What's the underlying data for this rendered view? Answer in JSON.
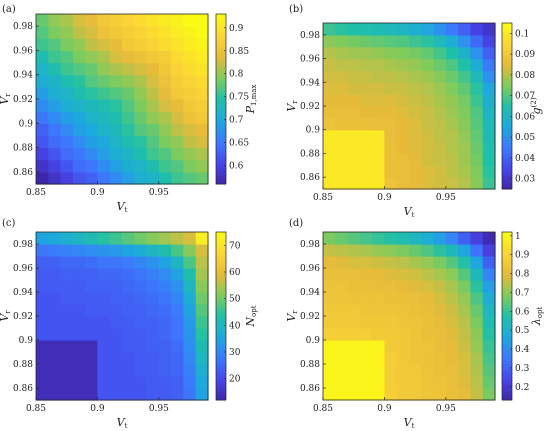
{
  "figure": {
    "colormap": [
      "#3e26a8",
      "#4746eb",
      "#3c7afd",
      "#1ea8df",
      "#1fc0a8",
      "#7fcb5c",
      "#e6bb3a",
      "#fcd636",
      "#f9fb14"
    ]
  },
  "chart_data": [
    {
      "panel": "(a)",
      "type": "heatmap",
      "xlabel": "V_t",
      "ylabel": "V_r",
      "colorbar_label": "P_1,max",
      "xlim": [
        0.85,
        0.99
      ],
      "ylim": [
        0.85,
        0.99
      ],
      "x_ticks": [
        "0.85",
        "0.9",
        "0.95"
      ],
      "y_ticks": [
        "0.86",
        "0.88",
        "0.9",
        "0.92",
        "0.94",
        "0.96",
        "0.98"
      ],
      "x_tick_values": [
        0.85,
        0.9,
        0.95
      ],
      "y_tick_values": [
        0.86,
        0.88,
        0.9,
        0.92,
        0.94,
        0.96,
        0.98
      ],
      "colorbar_ticks": [
        "0.6",
        "0.65",
        "0.7",
        "0.75",
        "0.8",
        "0.85",
        "0.9"
      ],
      "colorbar_tick_values": [
        0.6,
        0.65,
        0.7,
        0.75,
        0.8,
        0.85,
        0.9
      ],
      "colorbar_range": [
        0.56,
        0.93
      ],
      "grid": [
        [
          0.56,
          0.58,
          0.6,
          0.62,
          0.63,
          0.65,
          0.67,
          0.69,
          0.71,
          0.72,
          0.74,
          0.76,
          0.77,
          0.78
        ],
        [
          0.58,
          0.6,
          0.62,
          0.64,
          0.65,
          0.67,
          0.69,
          0.71,
          0.72,
          0.74,
          0.76,
          0.77,
          0.79,
          0.8
        ],
        [
          0.6,
          0.62,
          0.64,
          0.65,
          0.67,
          0.69,
          0.71,
          0.72,
          0.74,
          0.76,
          0.77,
          0.79,
          0.8,
          0.81
        ],
        [
          0.62,
          0.64,
          0.65,
          0.67,
          0.69,
          0.7,
          0.72,
          0.74,
          0.75,
          0.77,
          0.79,
          0.8,
          0.82,
          0.83
        ],
        [
          0.63,
          0.65,
          0.67,
          0.69,
          0.7,
          0.72,
          0.73,
          0.75,
          0.77,
          0.78,
          0.8,
          0.82,
          0.83,
          0.84
        ],
        [
          0.65,
          0.67,
          0.69,
          0.7,
          0.72,
          0.73,
          0.74,
          0.76,
          0.78,
          0.8,
          0.81,
          0.83,
          0.85,
          0.86
        ],
        [
          0.67,
          0.69,
          0.71,
          0.72,
          0.73,
          0.74,
          0.75,
          0.77,
          0.79,
          0.81,
          0.83,
          0.84,
          0.86,
          0.87
        ],
        [
          0.69,
          0.71,
          0.72,
          0.74,
          0.75,
          0.76,
          0.77,
          0.78,
          0.8,
          0.82,
          0.84,
          0.86,
          0.87,
          0.88
        ],
        [
          0.71,
          0.72,
          0.74,
          0.75,
          0.77,
          0.78,
          0.79,
          0.8,
          0.81,
          0.83,
          0.85,
          0.87,
          0.88,
          0.89
        ],
        [
          0.72,
          0.74,
          0.76,
          0.77,
          0.78,
          0.8,
          0.81,
          0.82,
          0.83,
          0.84,
          0.86,
          0.88,
          0.89,
          0.9
        ],
        [
          0.74,
          0.76,
          0.77,
          0.79,
          0.8,
          0.81,
          0.83,
          0.84,
          0.85,
          0.86,
          0.87,
          0.89,
          0.9,
          0.91
        ],
        [
          0.76,
          0.77,
          0.79,
          0.8,
          0.82,
          0.83,
          0.84,
          0.86,
          0.87,
          0.88,
          0.89,
          0.9,
          0.91,
          0.92
        ],
        [
          0.77,
          0.79,
          0.8,
          0.82,
          0.83,
          0.85,
          0.86,
          0.87,
          0.88,
          0.89,
          0.9,
          0.91,
          0.92,
          0.93
        ],
        [
          0.78,
          0.8,
          0.81,
          0.83,
          0.84,
          0.86,
          0.87,
          0.88,
          0.89,
          0.9,
          0.91,
          0.92,
          0.93,
          0.93
        ]
      ]
    },
    {
      "panel": "(b)",
      "type": "heatmap",
      "xlabel": "V_t",
      "ylabel": "V_r",
      "colorbar_label": "g^(2)",
      "xlim": [
        0.85,
        0.99
      ],
      "ylim": [
        0.85,
        0.99
      ],
      "x_ticks": [
        "0.85",
        "0.9",
        "0.95"
      ],
      "y_ticks": [
        "0.86",
        "0.88",
        "0.9",
        "0.92",
        "0.94",
        "0.96",
        "0.98"
      ],
      "x_tick_values": [
        0.85,
        0.9,
        0.95
      ],
      "y_tick_values": [
        0.86,
        0.88,
        0.9,
        0.92,
        0.94,
        0.96,
        0.98
      ],
      "colorbar_ticks": [
        "0.03",
        "0.04",
        "0.05",
        "0.06",
        "0.07",
        "0.08",
        "0.09",
        "0.1"
      ],
      "colorbar_tick_values": [
        0.03,
        0.04,
        0.05,
        0.06,
        0.07,
        0.08,
        0.09,
        0.1
      ],
      "colorbar_range": [
        0.025,
        0.105
      ],
      "grid": [
        [
          0.1,
          0.1,
          0.1,
          0.1,
          0.1,
          0.088,
          0.086,
          0.085,
          0.084,
          0.083,
          0.082,
          0.08,
          0.076,
          0.068
        ],
        [
          0.1,
          0.1,
          0.1,
          0.1,
          0.1,
          0.087,
          0.086,
          0.085,
          0.084,
          0.083,
          0.081,
          0.079,
          0.075,
          0.066
        ],
        [
          0.1,
          0.1,
          0.1,
          0.1,
          0.1,
          0.087,
          0.086,
          0.085,
          0.083,
          0.082,
          0.081,
          0.078,
          0.074,
          0.065
        ],
        [
          0.1,
          0.1,
          0.1,
          0.1,
          0.1,
          0.087,
          0.085,
          0.084,
          0.083,
          0.082,
          0.08,
          0.078,
          0.073,
          0.064
        ],
        [
          0.1,
          0.1,
          0.1,
          0.1,
          0.1,
          0.086,
          0.085,
          0.084,
          0.083,
          0.081,
          0.08,
          0.077,
          0.072,
          0.063
        ],
        [
          0.088,
          0.087,
          0.087,
          0.087,
          0.086,
          0.086,
          0.085,
          0.084,
          0.082,
          0.081,
          0.079,
          0.076,
          0.071,
          0.062
        ],
        [
          0.086,
          0.086,
          0.086,
          0.085,
          0.085,
          0.085,
          0.084,
          0.083,
          0.082,
          0.08,
          0.078,
          0.075,
          0.07,
          0.06
        ],
        [
          0.085,
          0.085,
          0.085,
          0.084,
          0.084,
          0.084,
          0.083,
          0.082,
          0.081,
          0.079,
          0.077,
          0.074,
          0.068,
          0.058
        ],
        [
          0.084,
          0.084,
          0.083,
          0.083,
          0.083,
          0.082,
          0.082,
          0.081,
          0.08,
          0.078,
          0.075,
          0.072,
          0.066,
          0.055
        ],
        [
          0.083,
          0.083,
          0.082,
          0.082,
          0.081,
          0.081,
          0.08,
          0.079,
          0.078,
          0.076,
          0.073,
          0.069,
          0.062,
          0.05
        ],
        [
          0.082,
          0.081,
          0.081,
          0.08,
          0.08,
          0.079,
          0.078,
          0.077,
          0.075,
          0.073,
          0.07,
          0.065,
          0.057,
          0.045
        ],
        [
          0.08,
          0.079,
          0.078,
          0.078,
          0.077,
          0.076,
          0.075,
          0.074,
          0.072,
          0.069,
          0.065,
          0.059,
          0.05,
          0.04
        ],
        [
          0.076,
          0.075,
          0.074,
          0.073,
          0.072,
          0.071,
          0.07,
          0.068,
          0.066,
          0.062,
          0.057,
          0.05,
          0.042,
          0.034
        ],
        [
          0.068,
          0.066,
          0.065,
          0.064,
          0.063,
          0.062,
          0.06,
          0.058,
          0.055,
          0.05,
          0.045,
          0.04,
          0.034,
          0.03
        ]
      ]
    },
    {
      "panel": "(c)",
      "type": "heatmap",
      "xlabel": "V_t",
      "ylabel": "V_r",
      "colorbar_label": "N_opt",
      "xlim": [
        0.85,
        0.99
      ],
      "ylim": [
        0.85,
        0.99
      ],
      "x_ticks": [
        "0.85",
        "0.9",
        "0.95"
      ],
      "y_ticks": [
        "0.86",
        "0.88",
        "0.9",
        "0.92",
        "0.94",
        "0.96",
        "0.98"
      ],
      "x_tick_values": [
        0.85,
        0.9,
        0.95
      ],
      "y_tick_values": [
        0.86,
        0.88,
        0.9,
        0.92,
        0.94,
        0.96,
        0.98
      ],
      "colorbar_ticks": [
        "20",
        "30",
        "40",
        "50",
        "60",
        "70"
      ],
      "colorbar_tick_values": [
        20,
        30,
        40,
        50,
        60,
        70
      ],
      "colorbar_range": [
        12,
        75
      ],
      "grid": [
        [
          14,
          14,
          14,
          14,
          14,
          22,
          22,
          22,
          22,
          23,
          23,
          24,
          27,
          35
        ],
        [
          14,
          14,
          14,
          14,
          14,
          22,
          22,
          22,
          22,
          23,
          23,
          24,
          28,
          36
        ],
        [
          14,
          14,
          14,
          14,
          14,
          22,
          22,
          22,
          23,
          23,
          24,
          25,
          29,
          38
        ],
        [
          14,
          14,
          14,
          14,
          14,
          22,
          22,
          22,
          23,
          23,
          24,
          25,
          30,
          40
        ],
        [
          14,
          14,
          14,
          14,
          14,
          22,
          22,
          23,
          23,
          24,
          24,
          26,
          31,
          42
        ],
        [
          22,
          22,
          22,
          22,
          22,
          22,
          22,
          23,
          23,
          24,
          25,
          27,
          32,
          44
        ],
        [
          22,
          22,
          22,
          22,
          22,
          22,
          23,
          23,
          24,
          24,
          25,
          27,
          33,
          46
        ],
        [
          22,
          22,
          22,
          22,
          23,
          23,
          23,
          24,
          24,
          25,
          26,
          28,
          35,
          48
        ],
        [
          22,
          22,
          23,
          23,
          23,
          23,
          24,
          24,
          25,
          26,
          27,
          30,
          37,
          50
        ],
        [
          23,
          23,
          23,
          23,
          24,
          24,
          24,
          25,
          26,
          27,
          29,
          32,
          40,
          52
        ],
        [
          23,
          23,
          24,
          24,
          24,
          25,
          25,
          26,
          27,
          29,
          31,
          35,
          43,
          54
        ],
        [
          24,
          24,
          25,
          25,
          26,
          27,
          27,
          28,
          30,
          32,
          35,
          40,
          47,
          56
        ],
        [
          27,
          28,
          29,
          30,
          31,
          32,
          33,
          35,
          37,
          40,
          43,
          47,
          52,
          58
        ],
        [
          35,
          36,
          38,
          40,
          42,
          44,
          46,
          48,
          50,
          52,
          54,
          56,
          58,
          72
        ]
      ]
    },
    {
      "panel": "(d)",
      "type": "heatmap",
      "xlabel": "V_t",
      "ylabel": "V_r",
      "colorbar_label": "λ_opt",
      "xlim": [
        0.85,
        0.99
      ],
      "ylim": [
        0.85,
        0.99
      ],
      "x_ticks": [
        "0.85",
        "0.9",
        "0.95"
      ],
      "y_ticks": [
        "0.86",
        "0.88",
        "0.9",
        "0.92",
        "0.94",
        "0.96",
        "0.98"
      ],
      "x_tick_values": [
        0.85,
        0.9,
        0.95
      ],
      "y_tick_values": [
        0.86,
        0.88,
        0.9,
        0.92,
        0.94,
        0.96,
        0.98
      ],
      "colorbar_ticks": [
        "0.2",
        "0.3",
        "0.4",
        "0.5",
        "0.6",
        "0.7",
        "0.8",
        "0.9",
        "1"
      ],
      "colorbar_tick_values": [
        0.2,
        0.3,
        0.4,
        0.5,
        0.6,
        0.7,
        0.8,
        0.9,
        1
      ],
      "colorbar_range": [
        0.13,
        1.02
      ],
      "grid": [
        [
          1.0,
          1.0,
          1.0,
          1.0,
          1.0,
          0.88,
          0.86,
          0.85,
          0.84,
          0.83,
          0.82,
          0.8,
          0.76,
          0.68
        ],
        [
          1.0,
          1.0,
          1.0,
          1.0,
          1.0,
          0.87,
          0.86,
          0.85,
          0.84,
          0.83,
          0.81,
          0.79,
          0.75,
          0.66
        ],
        [
          1.0,
          1.0,
          1.0,
          1.0,
          1.0,
          0.87,
          0.86,
          0.85,
          0.83,
          0.82,
          0.81,
          0.78,
          0.74,
          0.64
        ],
        [
          1.0,
          1.0,
          1.0,
          1.0,
          1.0,
          0.87,
          0.85,
          0.84,
          0.83,
          0.82,
          0.8,
          0.78,
          0.73,
          0.62
        ],
        [
          1.0,
          1.0,
          1.0,
          1.0,
          1.0,
          0.86,
          0.85,
          0.84,
          0.83,
          0.81,
          0.8,
          0.77,
          0.71,
          0.6
        ],
        [
          0.88,
          0.87,
          0.87,
          0.87,
          0.86,
          0.86,
          0.85,
          0.84,
          0.82,
          0.81,
          0.79,
          0.76,
          0.7,
          0.58
        ],
        [
          0.86,
          0.86,
          0.86,
          0.85,
          0.85,
          0.85,
          0.84,
          0.83,
          0.82,
          0.8,
          0.78,
          0.75,
          0.68,
          0.56
        ],
        [
          0.85,
          0.85,
          0.85,
          0.84,
          0.84,
          0.84,
          0.83,
          0.82,
          0.81,
          0.79,
          0.77,
          0.73,
          0.66,
          0.53
        ],
        [
          0.84,
          0.84,
          0.83,
          0.83,
          0.83,
          0.82,
          0.82,
          0.81,
          0.8,
          0.78,
          0.75,
          0.71,
          0.63,
          0.49
        ],
        [
          0.83,
          0.83,
          0.82,
          0.82,
          0.81,
          0.81,
          0.8,
          0.79,
          0.78,
          0.76,
          0.73,
          0.68,
          0.59,
          0.44
        ],
        [
          0.82,
          0.81,
          0.81,
          0.8,
          0.8,
          0.79,
          0.78,
          0.77,
          0.75,
          0.73,
          0.7,
          0.64,
          0.54,
          0.38
        ],
        [
          0.8,
          0.79,
          0.78,
          0.78,
          0.77,
          0.76,
          0.75,
          0.73,
          0.71,
          0.68,
          0.64,
          0.58,
          0.46,
          0.3
        ],
        [
          0.76,
          0.75,
          0.74,
          0.73,
          0.71,
          0.7,
          0.68,
          0.66,
          0.63,
          0.59,
          0.54,
          0.46,
          0.34,
          0.22
        ],
        [
          0.68,
          0.66,
          0.64,
          0.62,
          0.6,
          0.58,
          0.56,
          0.53,
          0.49,
          0.44,
          0.38,
          0.3,
          0.22,
          0.15
        ]
      ]
    }
  ]
}
